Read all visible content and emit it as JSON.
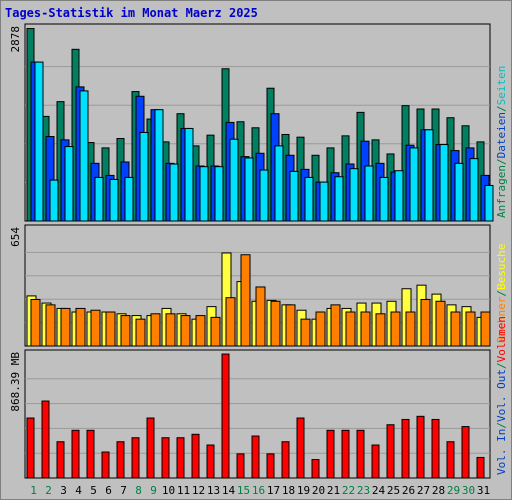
{
  "chart_data": {
    "type": "bar",
    "title": "Tages-Statistik im Monat Maerz 2025",
    "days": [
      "1",
      "2",
      "3",
      "4",
      "5",
      "6",
      "7",
      "8",
      "9",
      "10",
      "11",
      "12",
      "13",
      "14",
      "15",
      "16",
      "17",
      "18",
      "19",
      "20",
      "21",
      "22",
      "23",
      "24",
      "25",
      "26",
      "27",
      "28",
      "29",
      "30",
      "31"
    ],
    "weekend_days": [
      "1",
      "2",
      "8",
      "9",
      "15",
      "16",
      "22",
      "23",
      "29",
      "30"
    ],
    "panels": [
      {
        "id": "requests",
        "max_label": "2878",
        "max": 2878,
        "right_labels": [
          {
            "text": "Anfragen",
            "color": "#008040"
          },
          {
            "text": "/",
            "color": "#008040"
          },
          {
            "text": "Dateien",
            "color": "#0040c0"
          },
          {
            "text": "/",
            "color": "#008040"
          },
          {
            "text": "Seiten",
            "color": "#00c0c0"
          }
        ],
        "series": [
          {
            "name": "Anfragen",
            "color": "#008060",
            "values": [
              2870,
              1560,
              1780,
              2560,
              1170,
              1090,
              1230,
              1930,
              1520,
              1180,
              1600,
              1120,
              1280,
              2270,
              1480,
              1390,
              1980,
              1290,
              1250,
              980,
              1090,
              1270,
              1620,
              1210,
              1000,
              1720,
              1670,
              1670,
              1540,
              1420,
              1180
            ]
          },
          {
            "name": "Dateien",
            "color": "#0040ff",
            "values": [
              2370,
              1260,
              1210,
              2000,
              860,
              680,
              880,
              1860,
              1660,
              860,
              1380,
              820,
              820,
              1470,
              960,
              1010,
              1600,
              980,
              770,
              580,
              720,
              850,
              1190,
              860,
              730,
              1130,
              1360,
              1140,
              1050,
              1090,
              680
            ]
          },
          {
            "name": "Seiten",
            "color": "#00e0ff",
            "values": [
              2370,
              610,
              1110,
              1940,
              650,
              620,
              650,
              1320,
              1660,
              850,
              1380,
              810,
              810,
              1220,
              940,
              760,
              1120,
              740,
              650,
              580,
              660,
              780,
              820,
              650,
              750,
              1090,
              1360,
              1140,
              860,
              930,
              530
            ]
          }
        ]
      },
      {
        "id": "visits",
        "max_label": "654",
        "max": 654,
        "right_labels": [
          {
            "text": "Rechner",
            "color": "#ff8000"
          },
          {
            "text": "/",
            "color": "#008040"
          },
          {
            "text": "Besuche",
            "color": "#ffff00"
          }
        ],
        "series": [
          {
            "name": "Besuche",
            "color": "#ffff40",
            "values": [
              280,
              240,
              210,
              190,
              190,
              190,
              180,
              170,
              170,
              210,
              180,
              150,
              220,
              520,
              360,
              250,
              255,
              230,
              200,
              150,
              210,
              210,
              240,
              240,
              250,
              320,
              340,
              290,
              230,
              220,
              160
            ]
          },
          {
            "name": "Rechner",
            "color": "#ff8000",
            "values": [
              260,
              230,
              210,
              210,
              200,
              190,
              170,
              150,
              180,
              180,
              170,
              170,
              160,
              270,
              510,
              330,
              250,
              230,
              150,
              190,
              230,
              190,
              190,
              180,
              190,
              190,
              260,
              250,
              190,
              190,
              190
            ]
          }
        ]
      },
      {
        "id": "volume",
        "max_label": "868.39 MB",
        "max": 868.39,
        "right_labels": [
          {
            "text": "Vol. In",
            "color": "#0040c0"
          },
          {
            "text": "/",
            "color": "#008040"
          },
          {
            "text": "Vol. Out",
            "color": "#0040c0"
          },
          {
            "text": "/",
            "color": "#008040"
          },
          {
            "text": "Volumen",
            "color": "#ff0000"
          }
        ],
        "series": [
          {
            "name": "Volumen",
            "color": "#ff0000",
            "values": [
              420,
              539,
              254,
              334,
              334,
              182,
              254,
              282,
              420,
              282,
              282,
              306,
              231,
              868,
              169,
              294,
              169,
              254,
              420,
              129,
              334,
              334,
              334,
              231,
              373,
              410,
              432,
              410,
              254,
              360,
              144
            ]
          }
        ]
      }
    ]
  }
}
